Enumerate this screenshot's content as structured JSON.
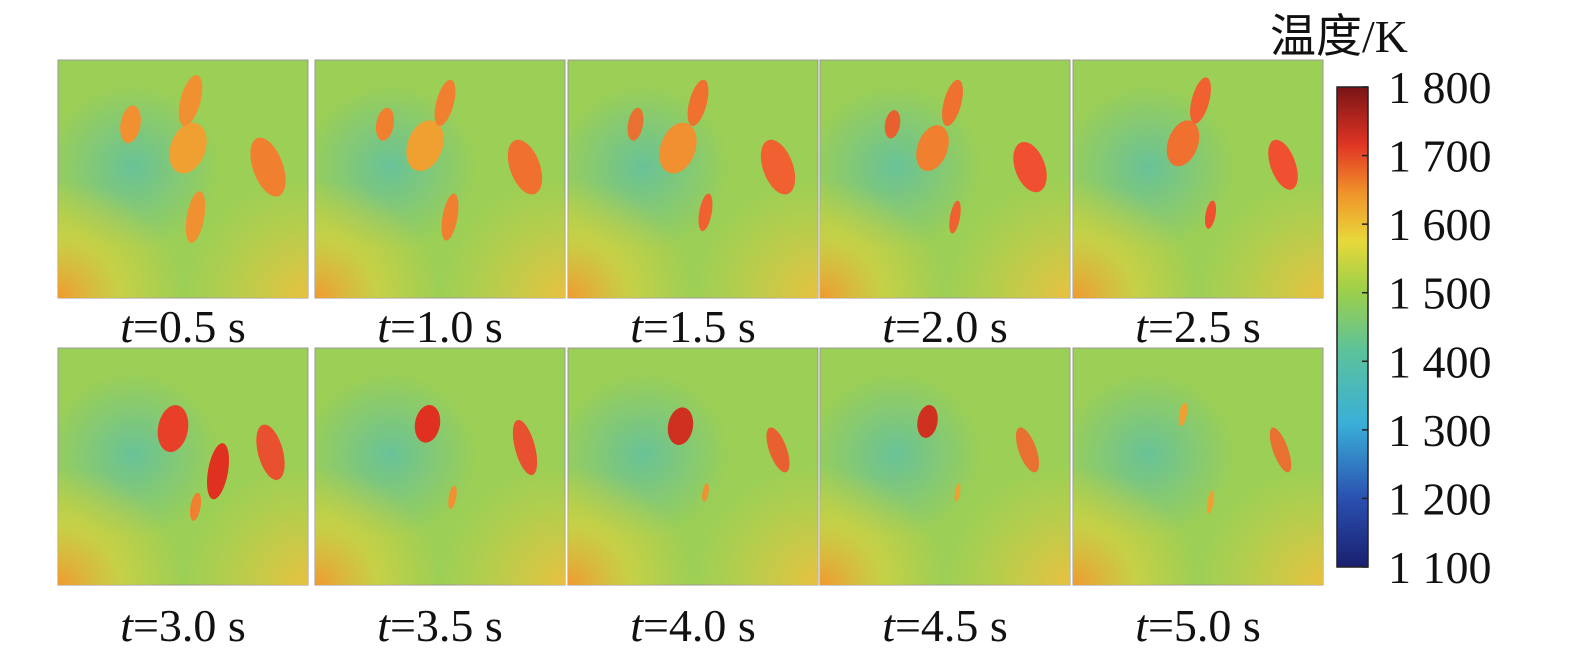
{
  "panels": [
    {
      "var": "t",
      "text": "=0.5 s"
    },
    {
      "var": "t",
      "text": "=1.0 s"
    },
    {
      "var": "t",
      "text": "=1.5 s"
    },
    {
      "var": "t",
      "text": "=2.0 s"
    },
    {
      "var": "t",
      "text": "=2.5 s"
    },
    {
      "var": "t",
      "text": "=3.0 s"
    },
    {
      "var": "t",
      "text": "=3.5 s"
    },
    {
      "var": "t",
      "text": "=4.0 s"
    },
    {
      "var": "t",
      "text": "=4.5 s"
    },
    {
      "var": "t",
      "text": "=5.0 s"
    }
  ],
  "colorbar": {
    "title": "温度/K",
    "lim": [
      1100,
      1800
    ],
    "ticks": [
      {
        "value": 1800,
        "label": "1 800"
      },
      {
        "value": 1700,
        "label": "1 700"
      },
      {
        "value": 1600,
        "label": "1 600"
      },
      {
        "value": 1500,
        "label": "1 500"
      },
      {
        "value": 1400,
        "label": "1 400"
      },
      {
        "value": 1300,
        "label": "1 300"
      },
      {
        "value": 1200,
        "label": "1 200"
      },
      {
        "value": 1100,
        "label": "1 100"
      }
    ]
  }
}
